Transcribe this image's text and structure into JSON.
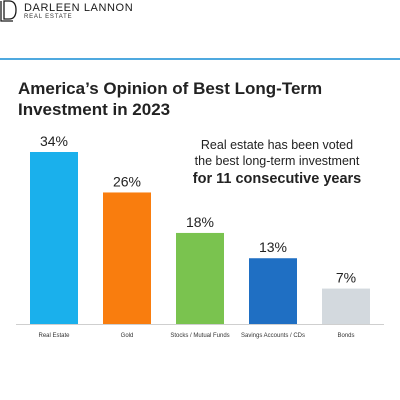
{
  "brand": {
    "logo_text": "DL",
    "name": "DARLEEN LANNON",
    "subtitle": "REAL ESTATE",
    "accent_color": "#4fa9df"
  },
  "callout": {
    "line1": "Real estate has been voted",
    "line2": "the best long-term investment",
    "line3": "for 11 consecutive years"
  },
  "chart_data": {
    "type": "bar",
    "title": "America’s Opinion of Best Long-Term Investment in 2023",
    "categories": [
      "Real Estate",
      "Gold",
      "Stocks / Mutual Funds",
      "Savings Accounts / CDs",
      "Bonds"
    ],
    "values": [
      34,
      26,
      18,
      13,
      7
    ],
    "value_labels": [
      "34%",
      "26%",
      "18%",
      "13%",
      "7%"
    ],
    "colors": [
      "#1ab0ec",
      "#f97d0e",
      "#7ac34f",
      "#1f6fc3",
      "#d3d9de"
    ],
    "unit": "%",
    "ylim": [
      0,
      34
    ],
    "grid": false,
    "legend": "none",
    "xlabel": "",
    "ylabel": ""
  }
}
